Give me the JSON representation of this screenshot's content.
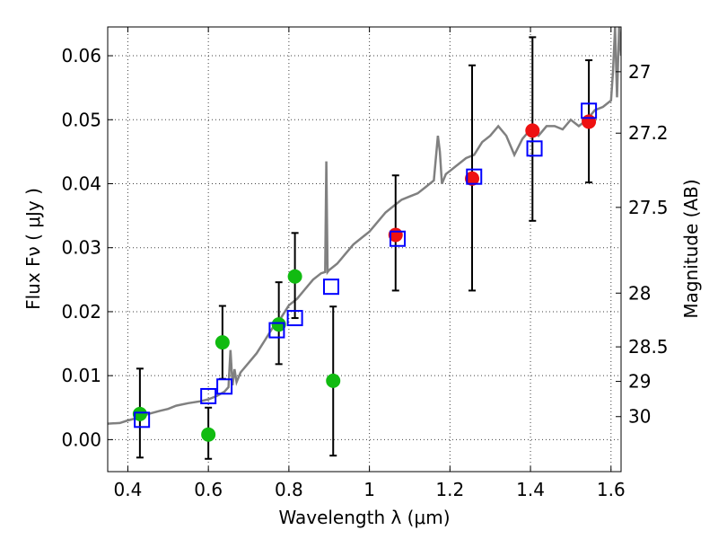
{
  "chart_data": {
    "type": "scatter",
    "title": "",
    "xlabel": "Wavelength  λ (μm)",
    "ylabel": "Flux  Fν  ( μJy )",
    "y2label": "Magnitude (AB)",
    "xlim": [
      0.35,
      1.625
    ],
    "ylim": [
      -0.005,
      0.0645
    ],
    "grid": true,
    "x_ticks": [
      {
        "value": 0.4,
        "label": "0.4"
      },
      {
        "value": 0.6,
        "label": "0.6"
      },
      {
        "value": 0.8,
        "label": "0.8"
      },
      {
        "value": 1.0,
        "label": "1"
      },
      {
        "value": 1.2,
        "label": "1.2"
      },
      {
        "value": 1.4,
        "label": "1.4"
      },
      {
        "value": 1.6,
        "label": "1.6"
      }
    ],
    "y_ticks": [
      {
        "value": 0.0,
        "label": "0.00"
      },
      {
        "value": 0.01,
        "label": "0.01"
      },
      {
        "value": 0.02,
        "label": "0.02"
      },
      {
        "value": 0.03,
        "label": "0.03"
      },
      {
        "value": 0.04,
        "label": "0.04"
      },
      {
        "value": 0.05,
        "label": "0.05"
      },
      {
        "value": 0.06,
        "label": "0.06"
      }
    ],
    "y2_ticks": [
      {
        "flux": 0.0575,
        "label": "27"
      },
      {
        "flux": 0.0479,
        "label": "27.2"
      },
      {
        "flux": 0.0363,
        "label": "27.5"
      },
      {
        "flux": 0.0229,
        "label": "28"
      },
      {
        "flux": 0.0145,
        "label": "28.5"
      },
      {
        "flux": 0.0091,
        "label": "29"
      },
      {
        "flux": 0.0036,
        "label": "30"
      }
    ],
    "model_spectrum": {
      "x": [
        0.35,
        0.38,
        0.4,
        0.43,
        0.45,
        0.48,
        0.5,
        0.52,
        0.55,
        0.58,
        0.6,
        0.62,
        0.64,
        0.65,
        0.655,
        0.66,
        0.665,
        0.67,
        0.68,
        0.7,
        0.72,
        0.74,
        0.76,
        0.78,
        0.8,
        0.82,
        0.84,
        0.86,
        0.88,
        0.89,
        0.893,
        0.896,
        0.9,
        0.92,
        0.94,
        0.96,
        0.98,
        1.0,
        1.02,
        1.04,
        1.06,
        1.08,
        1.1,
        1.12,
        1.14,
        1.16,
        1.17,
        1.175,
        1.18,
        1.19,
        1.2,
        1.22,
        1.24,
        1.26,
        1.28,
        1.3,
        1.32,
        1.34,
        1.36,
        1.38,
        1.4,
        1.42,
        1.44,
        1.46,
        1.48,
        1.5,
        1.52,
        1.54,
        1.56,
        1.58,
        1.6,
        1.605,
        1.61,
        1.615,
        1.62,
        1.625
      ],
      "y": [
        0.0025,
        0.0026,
        0.003,
        0.0035,
        0.004,
        0.0045,
        0.0048,
        0.0053,
        0.0057,
        0.006,
        0.0063,
        0.0068,
        0.0075,
        0.0082,
        0.014,
        0.0085,
        0.011,
        0.009,
        0.0105,
        0.012,
        0.0135,
        0.0155,
        0.0175,
        0.019,
        0.021,
        0.022,
        0.0235,
        0.025,
        0.026,
        0.0262,
        0.0435,
        0.0262,
        0.0265,
        0.0275,
        0.029,
        0.0305,
        0.0315,
        0.0325,
        0.034,
        0.0355,
        0.0365,
        0.0375,
        0.038,
        0.0385,
        0.0395,
        0.0405,
        0.0475,
        0.045,
        0.04,
        0.0415,
        0.042,
        0.043,
        0.044,
        0.0445,
        0.0465,
        0.0475,
        0.049,
        0.0475,
        0.0445,
        0.047,
        0.0485,
        0.0475,
        0.049,
        0.049,
        0.0485,
        0.05,
        0.049,
        0.05,
        0.0515,
        0.052,
        0.053,
        0.0575,
        0.0645,
        0.0535,
        0.0645,
        0.06
      ],
      "color": "#808080"
    },
    "series": [
      {
        "marker": "circle",
        "color": "#11bb11",
        "x": [
          0.43,
          0.6,
          0.635,
          0.775,
          0.815,
          0.91
        ],
        "y": [
          0.004,
          0.0008,
          0.0152,
          0.018,
          0.0255,
          0.0092
        ],
        "err_low": [
          0.0068,
          0.0038,
          0.0057,
          0.0062,
          0.0065,
          0.0117
        ],
        "err_high": [
          0.0071,
          0.0042,
          0.0057,
          0.0066,
          0.0068,
          0.0116
        ]
      },
      {
        "marker": "circle",
        "color": "#ee1111",
        "x": [
          1.065,
          1.255,
          1.405,
          1.545
        ],
        "y": [
          0.032,
          0.0408,
          0.0483,
          0.0497
        ],
        "err_low": [
          0.0087,
          0.0175,
          0.0141,
          0.0095
        ],
        "err_high": [
          0.0093,
          0.0177,
          0.0146,
          0.0096
        ]
      },
      {
        "marker": "open-square",
        "color": "#0000ff",
        "x": [
          0.435,
          0.6,
          0.64,
          0.77,
          0.815,
          0.905,
          1.07,
          1.26,
          1.41,
          1.545
        ],
        "y": [
          0.0031,
          0.0068,
          0.0083,
          0.0171,
          0.019,
          0.0239,
          0.0314,
          0.0411,
          0.0455,
          0.0514
        ]
      }
    ]
  }
}
